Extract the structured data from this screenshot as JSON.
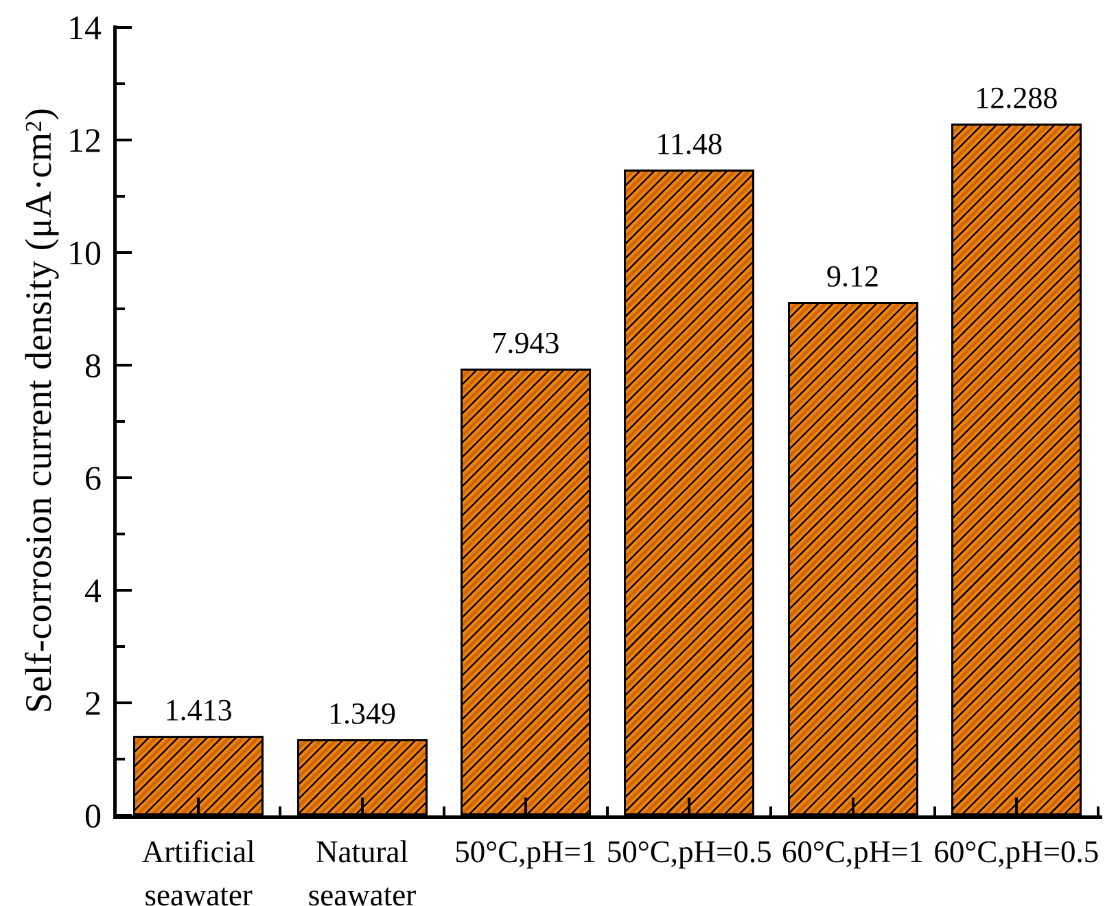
{
  "chart_data": {
    "type": "bar",
    "title": "",
    "categories": [
      "Artificial\nseawater",
      "Natural\nseawater",
      "50°C,pH=1",
      "50°C,pH=0.5",
      "60°C,pH=1",
      "60°C,pH=0.5"
    ],
    "values": [
      1.413,
      1.349,
      7.943,
      11.48,
      9.12,
      12.288
    ],
    "value_labels": [
      "1.413",
      "1.349",
      "7.943",
      "11.48",
      "9.12",
      "12.288"
    ],
    "xlabel": "",
    "ylabel_prefix": "Self-corrosion current density (μA·cm",
    "ylabel_sup": "2",
    "ylabel_suffix": ")",
    "ylim": [
      0,
      14
    ],
    "yticks": [
      0,
      2,
      4,
      6,
      8,
      10,
      12,
      14
    ],
    "minor_yticks": [
      1,
      3,
      5,
      7,
      9,
      11,
      13
    ],
    "grid": false,
    "legend": null,
    "bar_fill_color": "#F5820D",
    "bar_hatch": "forward-diagonal",
    "hatch_color": "#000000",
    "hatch_shadow_color": "#8B4500",
    "axis_color": "#000000",
    "text_color": "#000000"
  }
}
